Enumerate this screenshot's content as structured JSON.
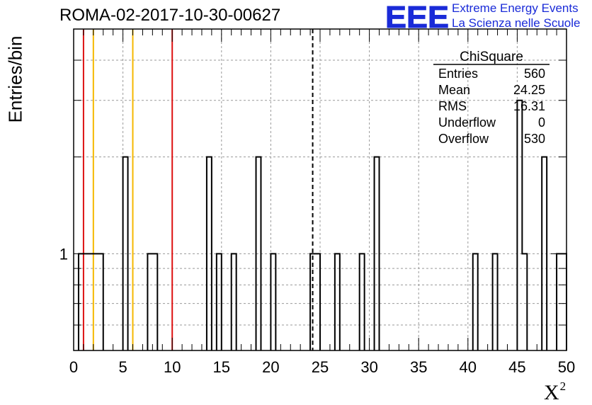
{
  "title": "ROMA-02-2017-10-30-00627",
  "logo": {
    "text": "EEE",
    "line1": "Extreme Energy Events",
    "line2": "La Scienza nelle Scuole",
    "color": "#1a2bd8"
  },
  "stats": {
    "title": "ChiSquare",
    "rows": [
      {
        "label": "Entries",
        "value": "560"
      },
      {
        "label": "Mean",
        "value": "24.25"
      },
      {
        "label": "RMS",
        "value": "16.31"
      },
      {
        "label": "Underflow",
        "value": "0"
      },
      {
        "label": "Overflow",
        "value": "530"
      }
    ]
  },
  "chart_data": {
    "type": "bar",
    "title": "ROMA-02-2017-10-30-00627",
    "xlabel": "X",
    "xlabel_superscript": "2",
    "ylabel": "Entries/bin",
    "xlim": [
      0,
      50
    ],
    "ylim": [
      0.5,
      5
    ],
    "y_log_scale": true,
    "grid": true,
    "bin_width": 0.5,
    "x_ticks": [
      "0",
      "5",
      "10",
      "15",
      "20",
      "25",
      "30",
      "35",
      "40",
      "45",
      "50"
    ],
    "y_ticks": [
      "1"
    ],
    "bins": [
      {
        "x": 0.5,
        "y": 1
      },
      {
        "x": 1.0,
        "y": 1
      },
      {
        "x": 1.5,
        "y": 1
      },
      {
        "x": 2.0,
        "y": 1
      },
      {
        "x": 2.5,
        "y": 1
      },
      {
        "x": 5.0,
        "y": 2
      },
      {
        "x": 7.5,
        "y": 1
      },
      {
        "x": 8.0,
        "y": 1
      },
      {
        "x": 13.5,
        "y": 2
      },
      {
        "x": 14.5,
        "y": 1
      },
      {
        "x": 16.0,
        "y": 1
      },
      {
        "x": 18.5,
        "y": 2
      },
      {
        "x": 20.0,
        "y": 1
      },
      {
        "x": 24.0,
        "y": 1
      },
      {
        "x": 24.5,
        "y": 1
      },
      {
        "x": 26.5,
        "y": 1
      },
      {
        "x": 29.0,
        "y": 1
      },
      {
        "x": 30.5,
        "y": 2
      },
      {
        "x": 40.5,
        "y": 1
      },
      {
        "x": 42.5,
        "y": 1
      },
      {
        "x": 45.0,
        "y": 3
      },
      {
        "x": 45.5,
        "y": 1
      },
      {
        "x": 47.5,
        "y": 2
      },
      {
        "x": 49.0,
        "y": 1
      },
      {
        "x": 49.5,
        "y": 1
      }
    ],
    "vlines": [
      {
        "x": 1,
        "color": "#dd1111",
        "style": "solid"
      },
      {
        "x": 2,
        "color": "#f5b800",
        "style": "solid"
      },
      {
        "x": 6,
        "color": "#f5b800",
        "style": "solid"
      },
      {
        "x": 10,
        "color": "#dd1111",
        "style": "solid"
      },
      {
        "x": 24.25,
        "color": "#000000",
        "style": "dashed"
      }
    ]
  }
}
